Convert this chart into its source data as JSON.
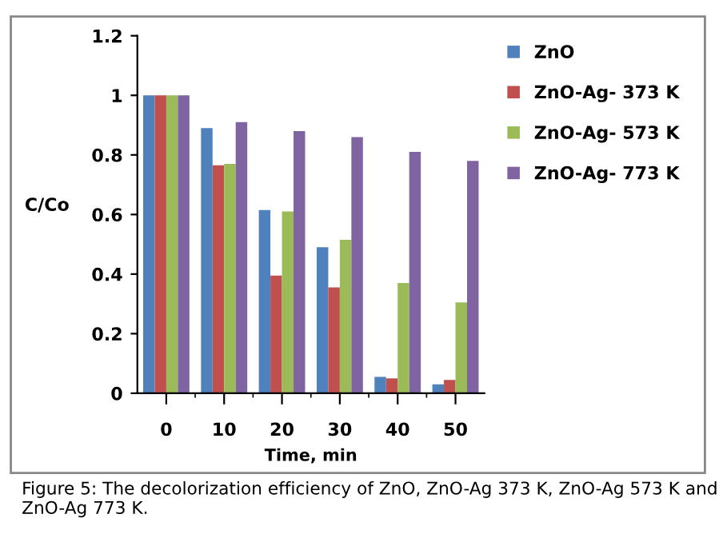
{
  "chart_data": {
    "type": "bar",
    "xlabel": "Time, min",
    "ylabel": "C/Co",
    "categories": [
      "0",
      "10",
      "20",
      "30",
      "40",
      "50"
    ],
    "series": [
      {
        "name": "ZnO",
        "color": "#4f81bd",
        "values": [
          1.0,
          0.89,
          0.615,
          0.49,
          0.055,
          0.03
        ]
      },
      {
        "name": "ZnO-Ag- 373 K",
        "color": "#c0504d",
        "values": [
          1.0,
          0.765,
          0.395,
          0.355,
          0.05,
          0.045
        ]
      },
      {
        "name": "ZnO-Ag- 573 K",
        "color": "#9bbb59",
        "values": [
          1.0,
          0.77,
          0.61,
          0.515,
          0.37,
          0.305
        ]
      },
      {
        "name": "ZnO-Ag- 773 K",
        "color": "#8064a2",
        "values": [
          1.0,
          0.91,
          0.88,
          0.86,
          0.81,
          0.78
        ]
      }
    ],
    "ylim": [
      0,
      1.2
    ],
    "yticks": [
      0,
      0.2,
      0.4,
      0.6,
      0.8,
      1,
      1.2
    ],
    "grid": false,
    "legend": "right",
    "annotations": [
      "Figure 5: The decolorization efficiency of ZnO, ZnO-Ag 373 K, ZnO-Ag 573 K and ZnO-Ag 773 K."
    ]
  }
}
